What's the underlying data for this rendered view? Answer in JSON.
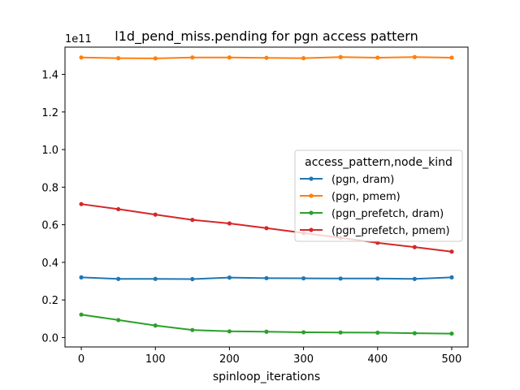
{
  "chart_data": {
    "type": "line",
    "title": "l1d_pend_miss.pending for pgn access pattern",
    "xlabel": "spinloop_iterations",
    "ylabel": "",
    "y_offset_label": "1e11",
    "xlim": [
      -22,
      522
    ],
    "ylim": [
      -0.05,
      1.545
    ],
    "x_ticks": [
      0,
      100,
      200,
      300,
      400,
      500
    ],
    "x_tick_labels": [
      "0",
      "100",
      "200",
      "300",
      "400",
      "500"
    ],
    "y_ticks": [
      0.0,
      0.2,
      0.4,
      0.6,
      0.8,
      1.0,
      1.2,
      1.4
    ],
    "y_tick_labels": [
      "0.0",
      "0.2",
      "0.4",
      "0.6",
      "0.8",
      "1.0",
      "1.2",
      "1.4"
    ],
    "grid": false,
    "legend": {
      "title": "access_pattern,node_kind",
      "placement": "center-right"
    },
    "x": [
      0,
      50,
      100,
      150,
      200,
      250,
      300,
      350,
      400,
      450,
      500
    ],
    "series": [
      {
        "name": "(pgn, dram)",
        "color": "#1f77b4",
        "values": [
          0.32,
          0.312,
          0.312,
          0.311,
          0.319,
          0.316,
          0.315,
          0.314,
          0.314,
          0.312,
          0.32
        ]
      },
      {
        "name": "(pgn, pmem)",
        "color": "#ff7f0e",
        "values": [
          1.49,
          1.486,
          1.485,
          1.49,
          1.49,
          1.488,
          1.486,
          1.492,
          1.489,
          1.492,
          1.489
        ]
      },
      {
        "name": "(pgn_prefetch, dram)",
        "color": "#2ca02c",
        "values": [
          0.122,
          0.093,
          0.064,
          0.04,
          0.033,
          0.031,
          0.028,
          0.027,
          0.026,
          0.023,
          0.021
        ]
      },
      {
        "name": "(pgn_prefetch, pmem)",
        "color": "#d62728",
        "values": [
          0.71,
          0.683,
          0.654,
          0.626,
          0.607,
          0.582,
          0.556,
          0.531,
          0.504,
          0.481,
          0.457
        ]
      }
    ]
  }
}
